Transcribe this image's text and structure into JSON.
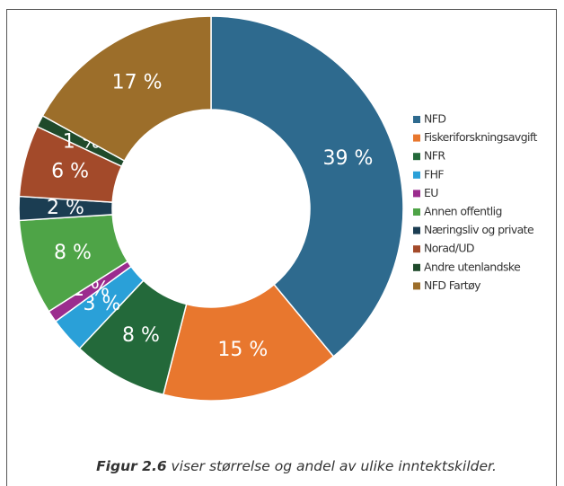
{
  "chart_data": {
    "type": "donut",
    "categories": [
      "NFD",
      "Fiskeriforskningsavgift",
      "NFR",
      "FHF",
      "EU",
      "Annen offentlig",
      "Næringsliv og private",
      "Norad/UD",
      "Andre utenlandske",
      "NFD Fartøy"
    ],
    "values": [
      39,
      15,
      8,
      3,
      1,
      8,
      2,
      6,
      1,
      17
    ],
    "value_labels": [
      "39 %",
      "15 %",
      "8 %",
      "3 %",
      "1 %",
      "8 %",
      "2 %",
      "6 %",
      "1 %",
      "17 %"
    ],
    "colors": [
      "#2e6a8e",
      "#e8772e",
      "#23693a",
      "#2aa0d8",
      "#9b2c8e",
      "#4ea447",
      "#1b3d52",
      "#a34a2a",
      "#1f4a2b",
      "#9c6e2a"
    ],
    "legend": "right"
  },
  "caption": {
    "label": "Figur 2.6",
    "text": " viser størrelse og andel av ulike inntektskilder."
  }
}
